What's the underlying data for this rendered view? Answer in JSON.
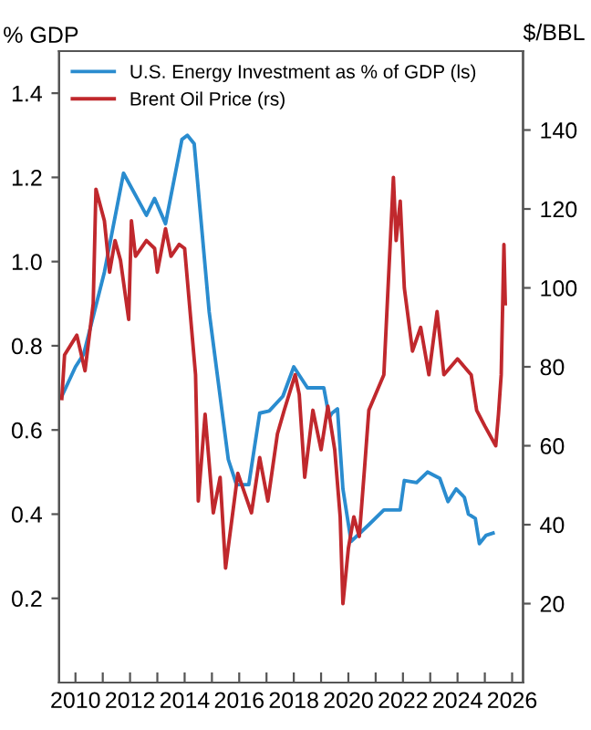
{
  "chart_data": {
    "type": "line",
    "ylabel": "% GDP",
    "y2label": "$/BBL",
    "series": [
      {
        "name": "U.S. Energy Investment as % of GDP (ls)",
        "color": "#2a8ccf",
        "axis": "y",
        "x": [
          2009.5,
          2010.0,
          2010.3,
          2011.06,
          2011.76,
          2012.6,
          2012.9,
          2013.3,
          2013.9,
          2014.1,
          2014.35,
          2014.9,
          2015.2,
          2015.6,
          2015.9,
          2016.35,
          2016.75,
          2017.1,
          2017.6,
          2018.0,
          2018.5,
          2019.1,
          2019.3,
          2019.4,
          2019.6,
          2019.8,
          2020.1,
          2020.75,
          2021.3,
          2021.9,
          2022.05,
          2022.5,
          2022.9,
          2023.35,
          2023.65,
          2023.95,
          2024.25,
          2024.4,
          2024.65,
          2024.8,
          2025.05,
          2025.3
        ],
        "values": [
          0.68,
          0.75,
          0.78,
          0.975,
          1.21,
          1.11,
          1.15,
          1.09,
          1.29,
          1.3,
          1.28,
          0.88,
          0.73,
          0.53,
          0.47,
          0.47,
          0.64,
          0.645,
          0.68,
          0.75,
          0.7,
          0.7,
          0.63,
          0.64,
          0.65,
          0.46,
          0.335,
          0.375,
          0.41,
          0.41,
          0.48,
          0.475,
          0.5,
          0.485,
          0.43,
          0.46,
          0.44,
          0.4,
          0.39,
          0.33,
          0.35,
          0.355
        ]
      },
      {
        "name": "Brent Oil Price (rs)",
        "color": "#c0282d",
        "axis": "y2",
        "x": [
          2009.5,
          2009.6,
          2010.05,
          2010.35,
          2010.65,
          2010.75,
          2011.06,
          2011.25,
          2011.45,
          2011.65,
          2011.95,
          2012.05,
          2012.2,
          2012.6,
          2012.9,
          2013.0,
          2013.3,
          2013.5,
          2013.8,
          2014.0,
          2014.1,
          2014.4,
          2014.45,
          2014.5,
          2014.75,
          2015.05,
          2015.3,
          2015.5,
          2015.95,
          2016.45,
          2016.75,
          2017.05,
          2017.4,
          2017.65,
          2018.05,
          2018.2,
          2018.4,
          2018.7,
          2019.0,
          2019.25,
          2019.5,
          2019.7,
          2019.8,
          2020.0,
          2020.2,
          2020.4,
          2020.6,
          2020.75,
          2021.3,
          2021.65,
          2021.75,
          2021.9,
          2022.05,
          2022.35,
          2022.65,
          2022.95,
          2023.25,
          2023.5,
          2024.0,
          2024.5,
          2024.7,
          2025.0,
          2025.4,
          2025.5,
          2025.6,
          2025.7,
          2025.75
        ],
        "values": [
          72,
          83,
          88,
          79,
          96,
          125,
          117,
          104,
          112,
          107,
          92,
          117,
          108,
          112,
          110,
          104,
          115,
          108,
          111,
          110,
          102,
          78,
          63,
          46,
          68,
          43,
          52,
          29,
          53,
          43,
          57,
          46,
          63,
          69,
          78,
          73,
          52,
          69,
          59,
          70,
          59,
          42,
          20,
          34,
          42,
          37,
          55,
          69,
          78,
          128,
          112,
          122,
          100,
          84,
          90,
          78,
          94,
          78,
          82,
          78,
          69,
          65,
          60,
          68,
          78,
          111,
          96
        ]
      }
    ],
    "xlim": [
      2009.4,
      2026.4
    ],
    "xticks": [
      2010,
      {
        "value": 2011,
        "label": null
      },
      2012,
      {
        "value": 2013,
        "label": null
      },
      2014,
      {
        "value": 2015,
        "label": null
      },
      2016,
      {
        "value": 2017,
        "label": null
      },
      2018,
      {
        "value": 2019,
        "label": null
      },
      2020,
      {
        "value": 2021,
        "label": null
      },
      2022,
      {
        "value": 2023,
        "label": null
      },
      2024,
      {
        "value": 2025,
        "label": null
      },
      2026
    ],
    "ylim": [
      0.0,
      1.5
    ],
    "yticks": [
      0.2,
      0.4,
      0.6,
      0.8,
      {
        "value": 1.0,
        "label": "1.0"
      },
      1.2,
      1.4
    ],
    "y2lim": [
      0,
      160
    ],
    "y2ticks": [
      20,
      40,
      60,
      80,
      100,
      120,
      140
    ],
    "grid": false,
    "legend": "top left"
  }
}
